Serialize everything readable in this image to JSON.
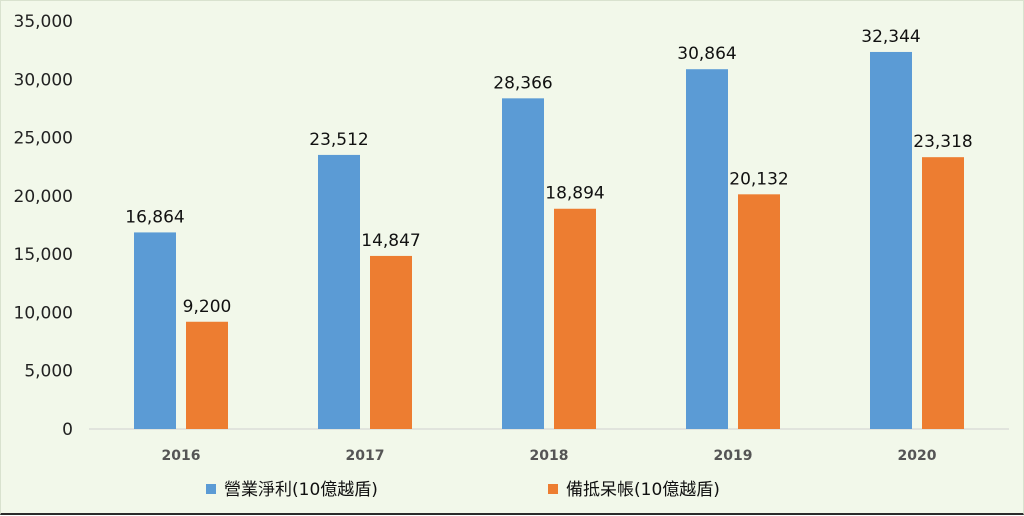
{
  "chart_data": {
    "type": "bar",
    "categories": [
      "2016",
      "2017",
      "2018",
      "2019",
      "2020"
    ],
    "series": [
      {
        "name": "營業淨利(10億越盾)",
        "values": [
          16864,
          23512,
          28366,
          30864,
          32344
        ],
        "labels": [
          "16,864",
          "23,512",
          "28,366",
          "30,864",
          "32,344"
        ],
        "color": "#5b9bd5"
      },
      {
        "name": "備抵呆帳(10億越盾)",
        "values": [
          9200,
          14847,
          18894,
          20132,
          23318
        ],
        "labels": [
          "9,200",
          "14,847",
          "18,894",
          "20,132",
          "23,318"
        ],
        "color": "#ed7d31"
      }
    ],
    "ylim": [
      0,
      35000
    ],
    "yticks": [
      0,
      5000,
      10000,
      15000,
      20000,
      25000,
      30000,
      35000
    ],
    "ytick_labels": [
      "0",
      "5,000",
      "10,000",
      "15,000",
      "20,000",
      "25,000",
      "30,000",
      "35,000"
    ],
    "grid": false,
    "legend_position": "bottom",
    "background": "#f2f8ea"
  }
}
